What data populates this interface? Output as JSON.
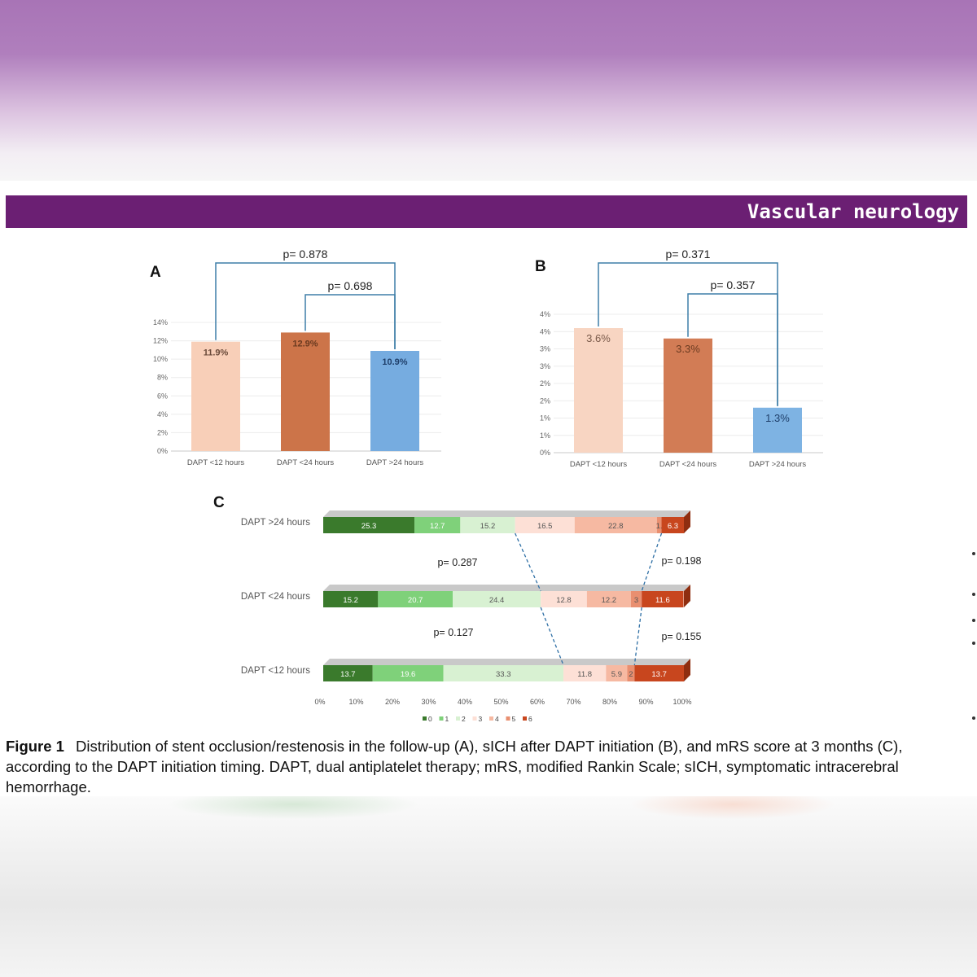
{
  "journal": {
    "section_title": "Vascular neurology"
  },
  "caption": {
    "label": "Figure 1",
    "text": "Distribution of stent occlusion/restenosis in the follow-up (A), sICH after DAPT initiation (B), and mRS score at 3 months (C), according to the DAPT initiation timing. DAPT, dual antiplatelet therapy; mRS, modified Rankin Scale; sICH, symptomatic intracerebral hemorrhage."
  },
  "chart_data": [
    {
      "panel": "A",
      "type": "bar",
      "categories": [
        "DAPT <12 hours",
        "DAPT <24 hours",
        "DAPT >24 hours"
      ],
      "values": [
        11.9,
        12.9,
        10.9
      ],
      "value_labels": [
        "11.9%",
        "12.9%",
        "10.9%"
      ],
      "colors": [
        "#f8cfb8",
        "#cc7449",
        "#76ace0"
      ],
      "yticks": [
        "0%",
        "2%",
        "4%",
        "6%",
        "8%",
        "10%",
        "12%",
        "14%"
      ],
      "ylim": [
        0,
        14
      ],
      "grid": true,
      "comparisons": [
        {
          "from": 0,
          "to": 2,
          "label": "p= 0.878"
        },
        {
          "from": 1,
          "to": 2,
          "label": "p= 0.698"
        }
      ]
    },
    {
      "panel": "B",
      "type": "bar",
      "categories": [
        "DAPT <12 hours",
        "DAPT <24 hours",
        "DAPT >24 hours"
      ],
      "values": [
        3.6,
        3.3,
        1.3
      ],
      "value_labels": [
        "3.6%",
        "3.3%",
        "1.3%"
      ],
      "colors": [
        "#f8d5c2",
        "#d27c55",
        "#7eb3e3"
      ],
      "yticks": [
        "0%",
        "1%",
        "1%",
        "2%",
        "2%",
        "3%",
        "3%",
        "4%",
        "4%"
      ],
      "ylim": [
        0,
        4
      ],
      "grid": true,
      "comparisons": [
        {
          "from": 0,
          "to": 2,
          "label": "p= 0.371"
        },
        {
          "from": 1,
          "to": 2,
          "label": "p= 0.357"
        }
      ]
    },
    {
      "panel": "C",
      "type": "bar",
      "orientation": "horizontal-stacked",
      "categories": [
        "DAPT >24 hours",
        "DAPT <24 hours",
        "DAPT <12 hours"
      ],
      "legend": [
        "0",
        "1",
        "2",
        "3",
        "4",
        "5",
        "6"
      ],
      "legend_position": "bottom",
      "colors": [
        "#3a7a2c",
        "#7fd17a",
        "#d8f1d2",
        "#fde0d6",
        "#f6b9a2",
        "#e98f70",
        "#c8461e"
      ],
      "series": [
        {
          "name": "0",
          "values": [
            25.3,
            15.2,
            13.7
          ]
        },
        {
          "name": "1",
          "values": [
            12.7,
            20.7,
            19.6
          ]
        },
        {
          "name": "2",
          "values": [
            15.2,
            24.4,
            33.3
          ]
        },
        {
          "name": "3",
          "values": [
            16.5,
            12.8,
            11.8
          ]
        },
        {
          "name": "4",
          "values": [
            22.8,
            12.2,
            5.9
          ]
        },
        {
          "name": "5",
          "values": [
            1.3,
            3,
            2
          ]
        },
        {
          "name": "6",
          "values": [
            6.3,
            11.6,
            13.7
          ]
        }
      ],
      "segment_labels": [
        [
          "25.3",
          "12.7",
          "15.2",
          "16.5",
          "22.8",
          "1.",
          "6.3"
        ],
        [
          "15.2",
          "20.7",
          "24.4",
          "12.8",
          "12.2",
          "3",
          "11.6"
        ],
        [
          "13.7",
          "19.6",
          "33.3",
          "11.8",
          "5.9",
          "2",
          "13.7"
        ]
      ],
      "xticks": [
        "0%",
        "10%",
        "20%",
        "30%",
        "40%",
        "50%",
        "60%",
        "70%",
        "80%",
        "90%",
        "100%"
      ],
      "xlim": [
        0,
        100
      ],
      "p_values": [
        {
          "between": [
            0,
            1
          ],
          "side": "left",
          "label": "p= 0.287"
        },
        {
          "between": [
            0,
            1
          ],
          "side": "right",
          "label": "p= 0.198"
        },
        {
          "between": [
            1,
            2
          ],
          "side": "left",
          "label": "p= 0.127"
        },
        {
          "between": [
            1,
            2
          ],
          "side": "right",
          "label": "p= 0.155"
        }
      ]
    }
  ]
}
